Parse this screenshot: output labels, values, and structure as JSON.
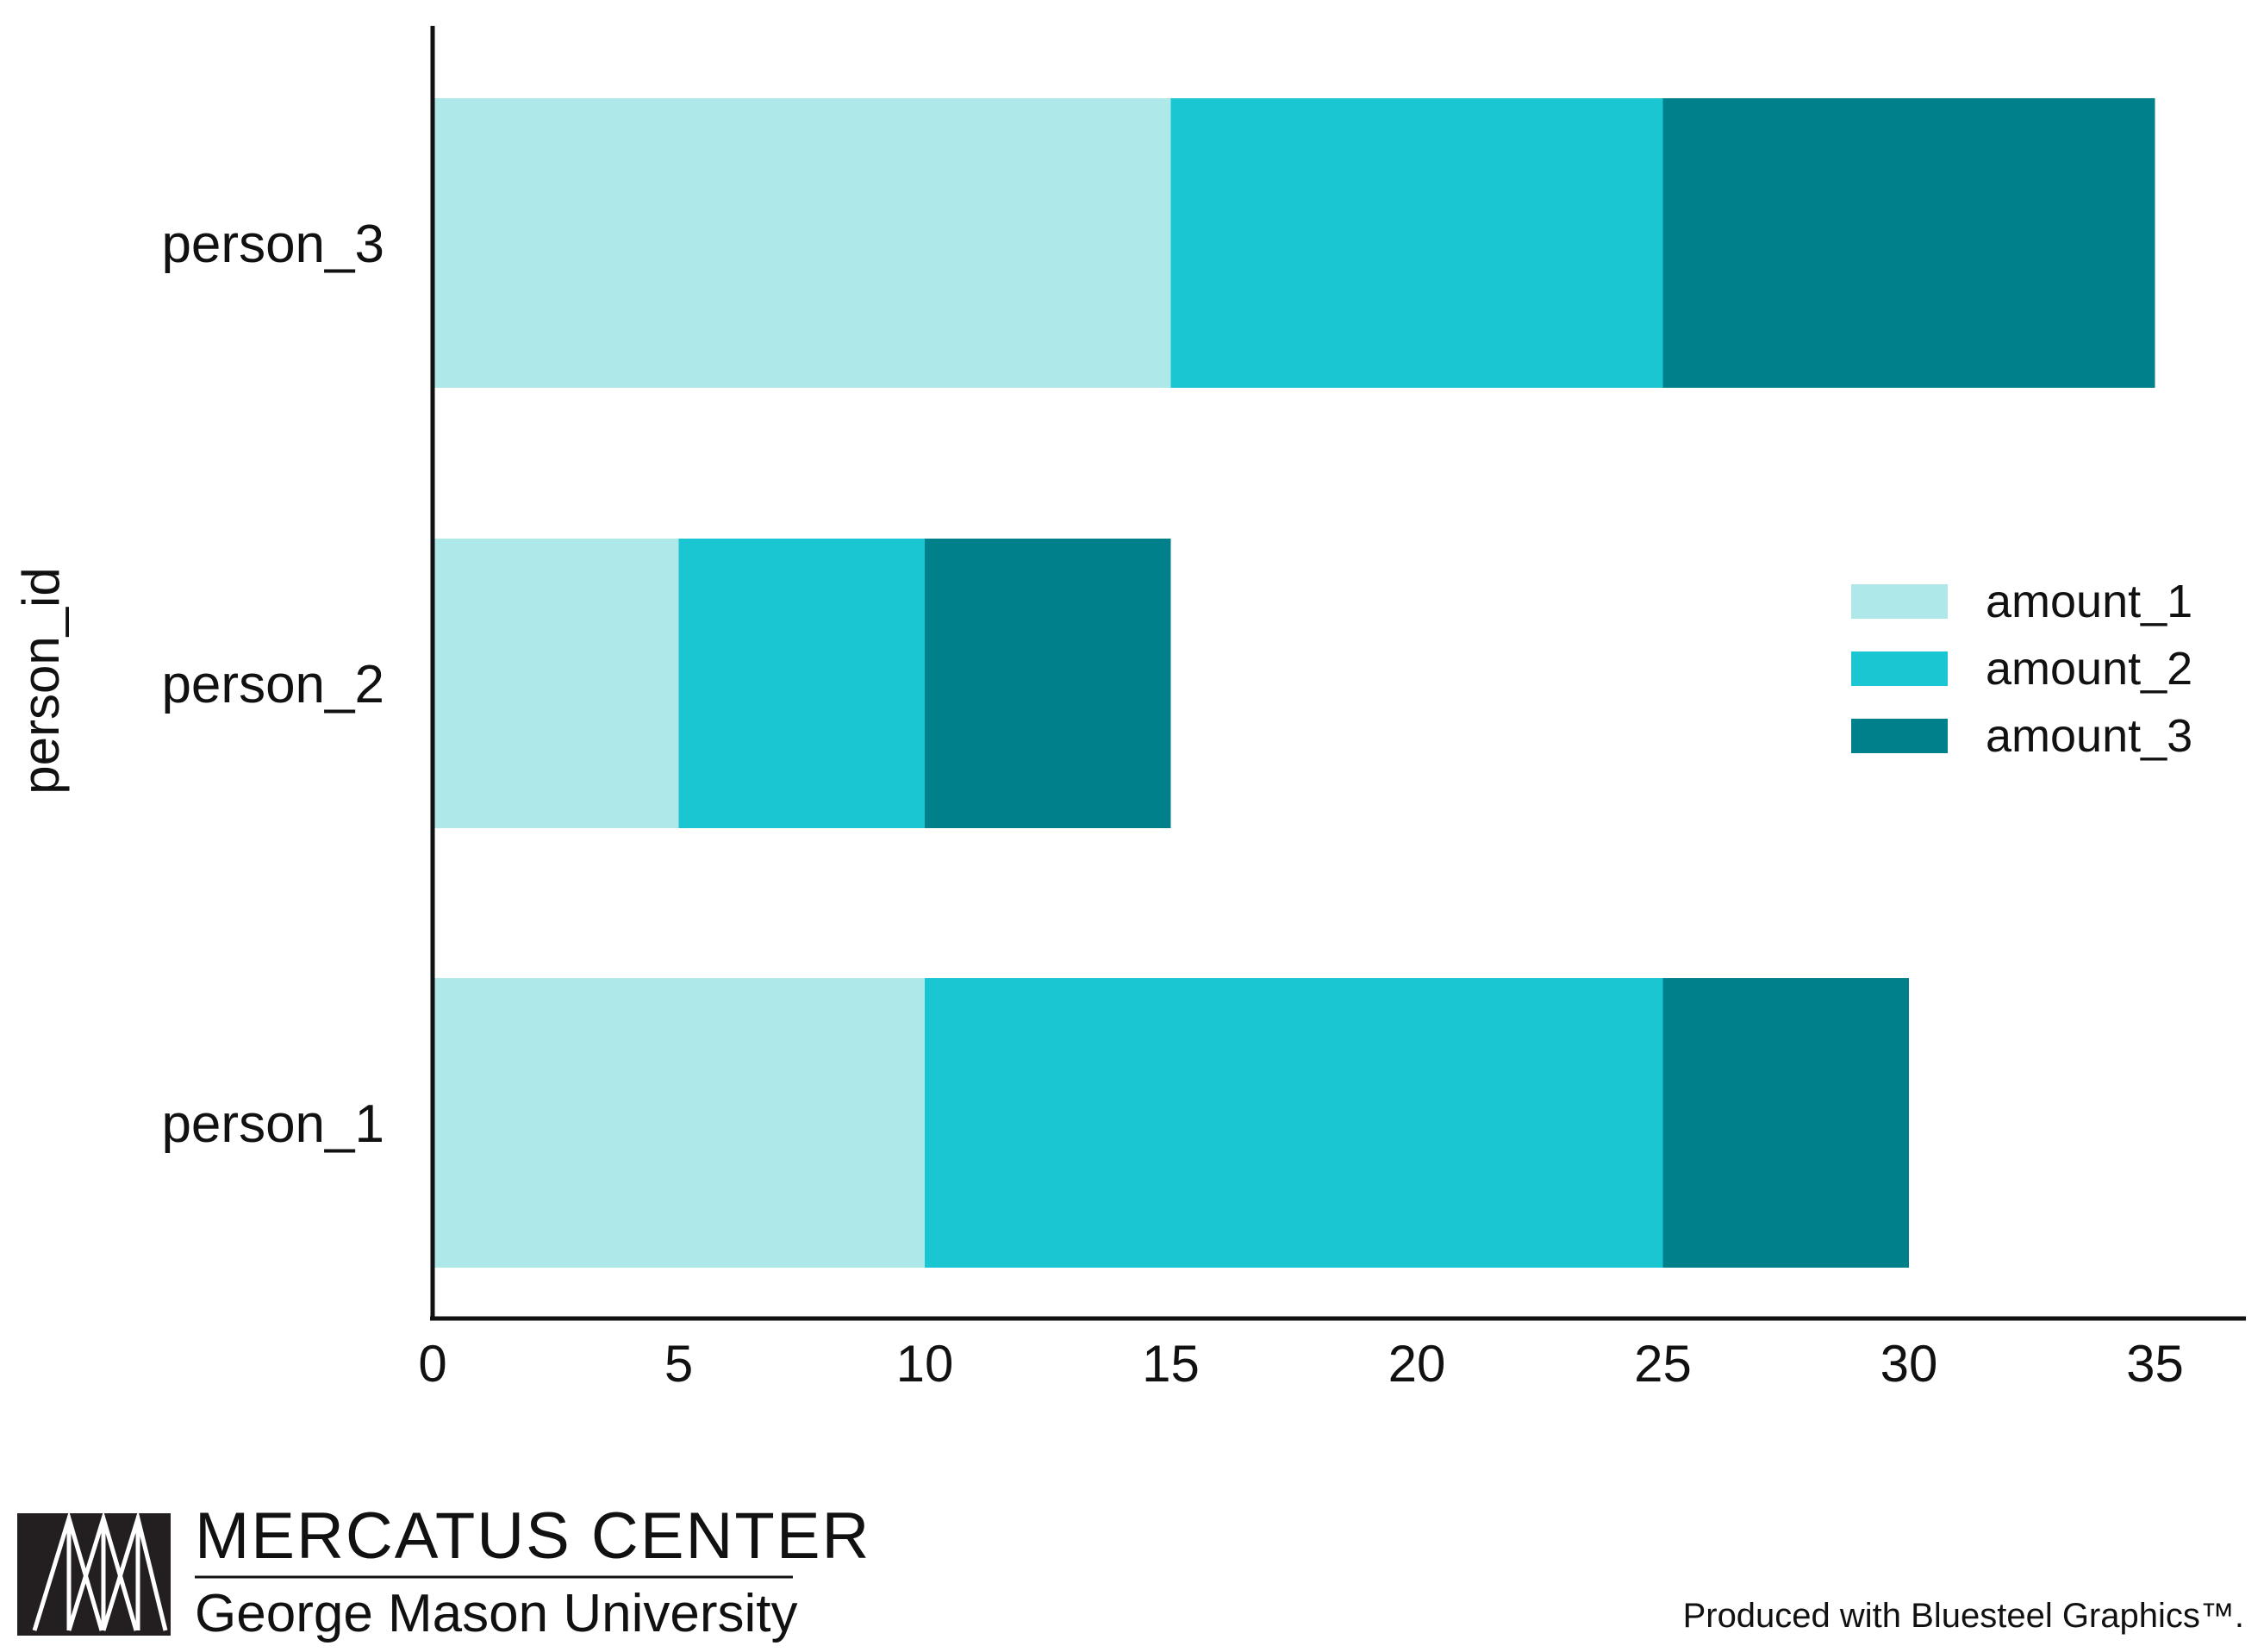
{
  "chart_data": {
    "type": "bar",
    "orientation": "horizontal",
    "stacked": true,
    "categories": [
      "person_1",
      "person_2",
      "person_3"
    ],
    "series": [
      {
        "name": "amount_1",
        "values": [
          10,
          5,
          15
        ],
        "color": "#aee8e8"
      },
      {
        "name": "amount_2",
        "values": [
          15,
          5,
          10
        ],
        "color": "#19c6d1"
      },
      {
        "name": "amount_3",
        "values": [
          5,
          5,
          10
        ],
        "color": "#00808a"
      }
    ],
    "ylabel": "person_id",
    "xlim": [
      0,
      36.8
    ],
    "xticks": [
      "0",
      "5",
      "10",
      "15",
      "20",
      "25",
      "30",
      "35"
    ],
    "grid": false,
    "legend_position": "right"
  },
  "footer": {
    "brand_name": "MERCATUS CENTER",
    "brand_sub": "George Mason University",
    "credit": "Produced with Bluesteel Graphics™."
  }
}
